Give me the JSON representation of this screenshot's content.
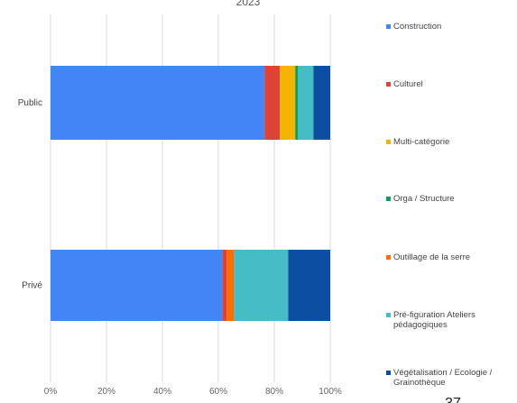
{
  "page_number": "37",
  "chart_data": {
    "type": "bar",
    "orientation": "horizontal",
    "stacked": "percent",
    "title": "2023",
    "categories": [
      "Public",
      "Privé"
    ],
    "series": [
      {
        "name": "Construction",
        "color": "#4285F4",
        "values": [
          76.5,
          61.5
        ]
      },
      {
        "name": "Culturel",
        "color": "#DB4437",
        "values": [
          5.5,
          1.5
        ]
      },
      {
        "name": "Multi-catégorie",
        "color": "#F4B400",
        "values": [
          5.5,
          0
        ]
      },
      {
        "name": "Orga / Structure",
        "color": "#0F9D58",
        "values": [
          1,
          0
        ]
      },
      {
        "name": "Outillage de la serre",
        "color": "#FF6D01",
        "values": [
          0,
          2.5
        ]
      },
      {
        "name": "Pré-figuration Ateliers pédagogiques",
        "color": "#46BDC6",
        "values": [
          5.5,
          19.5
        ]
      },
      {
        "name": "Végétalisation / Ecologie / Grainothèque",
        "color": "#0B4EA2",
        "values": [
          6,
          15
        ]
      }
    ],
    "x_ticks": [
      "0%",
      "20%",
      "40%",
      "60%",
      "80%",
      "100%"
    ],
    "xlim": [
      0,
      100
    ],
    "grid": true,
    "legend_position": "right"
  }
}
